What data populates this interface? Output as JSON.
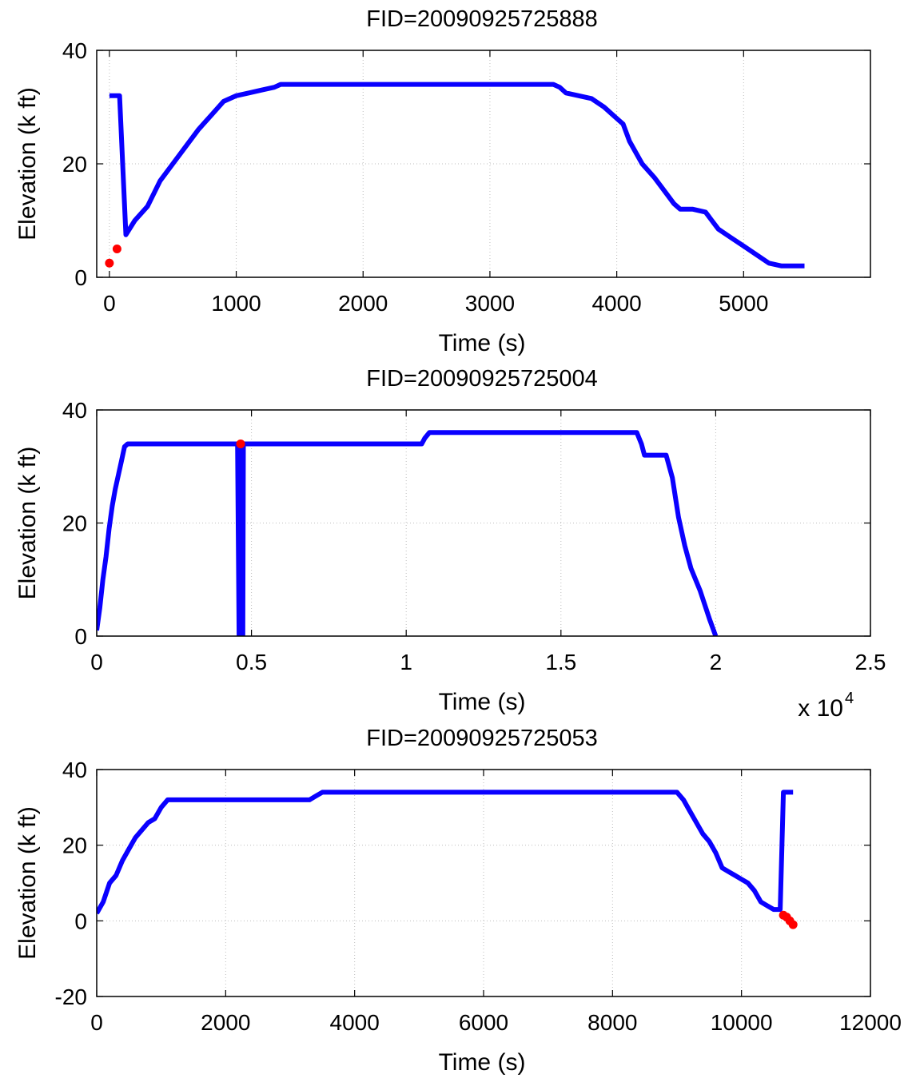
{
  "colors": {
    "series": "#0a00ff",
    "marker": "#ff0000",
    "grid": "#bdbdbd"
  },
  "chart_data": [
    {
      "type": "line",
      "title": "FID=20090925725888",
      "xlabel": "Time (s)",
      "ylabel": "Elevation (k ft)",
      "xlim": [
        -100,
        6000
      ],
      "ylim": [
        0,
        40
      ],
      "xticks": [
        0,
        1000,
        2000,
        3000,
        4000,
        5000
      ],
      "xtick_labels": [
        "0",
        "1000",
        "2000",
        "3000",
        "4000",
        "5000"
      ],
      "yticks": [
        0,
        20,
        40
      ],
      "ytick_labels": [
        "0",
        "20",
        "40"
      ],
      "x_multiplier": "",
      "grid": true,
      "series": [
        {
          "x": [
            0,
            80,
            130,
            200,
            300,
            400,
            500,
            600,
            700,
            800,
            900,
            1000,
            1100,
            1200,
            1300,
            1350,
            3500,
            3550,
            3600,
            3700,
            3800,
            3900,
            4000,
            4050,
            4100,
            4200,
            4300,
            4400,
            4450,
            4500,
            4600,
            4700,
            4750,
            4800,
            4900,
            5000,
            5100,
            5200,
            5300,
            5480
          ],
          "y": [
            32,
            32,
            7.5,
            10,
            12.5,
            17,
            20,
            23,
            26,
            28.5,
            31,
            32,
            32.5,
            33,
            33.5,
            34,
            34,
            33.5,
            32.5,
            32,
            31.5,
            30,
            28,
            27,
            24,
            20,
            17.5,
            14.5,
            13,
            12,
            12,
            11.5,
            10,
            8.5,
            7,
            5.5,
            4,
            2.5,
            2,
            2
          ]
        }
      ],
      "markers": [
        {
          "x": 0,
          "y": 2.5
        },
        {
          "x": 60,
          "y": 5
        }
      ]
    },
    {
      "type": "line",
      "title": "FID=20090925725004",
      "xlabel": "Time (s)",
      "ylabel": "Elevation (k ft)",
      "xlim": [
        0,
        25000
      ],
      "ylim": [
        0,
        40
      ],
      "xticks": [
        0,
        5000,
        10000,
        15000,
        20000,
        25000
      ],
      "xtick_labels": [
        "0",
        "0.5",
        "1",
        "1.5",
        "2",
        "2.5"
      ],
      "yticks": [
        0,
        20,
        40
      ],
      "ytick_labels": [
        "0",
        "20",
        "40"
      ],
      "x_multiplier": "x 10",
      "x_multiplier_exp": "4",
      "grid": true,
      "series": [
        {
          "x": [
            0,
            100,
            200,
            300,
            400,
            500,
            600,
            700,
            800,
            900,
            1000,
            1500,
            4550,
            4600,
            4620,
            4640,
            4660,
            4680,
            4700,
            4720,
            4740,
            4760,
            10500,
            10600,
            10750,
            17450,
            17600,
            17700,
            18400,
            18600,
            18800,
            19000,
            19200,
            19500,
            19800,
            20000
          ],
          "y": [
            1,
            5,
            10,
            14,
            19,
            23,
            26,
            28.5,
            31,
            33.5,
            34,
            34,
            34,
            0,
            34,
            0,
            34,
            0,
            34,
            0,
            34,
            34,
            34,
            35,
            36,
            36,
            34,
            32,
            32,
            28,
            21,
            16,
            12,
            8,
            3,
            0
          ]
        }
      ],
      "markers": [
        {
          "x": 4650,
          "y": 34
        }
      ]
    },
    {
      "type": "line",
      "title": "FID=20090925725053",
      "xlabel": "Time (s)",
      "ylabel": "Elevation (k ft)",
      "xlim": [
        0,
        12000
      ],
      "ylim": [
        -20,
        40
      ],
      "xticks": [
        0,
        2000,
        4000,
        6000,
        8000,
        10000,
        12000
      ],
      "xtick_labels": [
        "0",
        "2000",
        "4000",
        "6000",
        "8000",
        "10000",
        "12000"
      ],
      "yticks": [
        -20,
        0,
        20,
        40
      ],
      "ytick_labels": [
        "-20",
        "0",
        "20",
        "40"
      ],
      "x_multiplier": "",
      "grid": true,
      "series": [
        {
          "x": [
            0,
            100,
            200,
            300,
            400,
            500,
            600,
            700,
            800,
            900,
            1000,
            1100,
            1200,
            3300,
            3400,
            3500,
            3600,
            9000,
            9100,
            9200,
            9300,
            9400,
            9500,
            9600,
            9700,
            9800,
            9900,
            10000,
            10100,
            10200,
            10300,
            10400,
            10500,
            10600,
            10650,
            10700,
            10800
          ],
          "y": [
            2,
            5,
            10,
            12,
            16,
            19,
            22,
            24,
            26,
            27,
            30,
            32,
            32,
            32,
            33,
            34,
            34,
            34,
            32,
            29,
            26,
            23,
            21,
            18,
            14,
            13,
            12,
            11,
            10,
            8,
            5,
            4,
            3,
            3,
            34,
            34,
            34
          ]
        }
      ],
      "markers": [
        {
          "x": 10650,
          "y": 1.5
        },
        {
          "x": 10700,
          "y": 1
        },
        {
          "x": 10750,
          "y": 0
        },
        {
          "x": 10800,
          "y": -1
        }
      ]
    }
  ]
}
